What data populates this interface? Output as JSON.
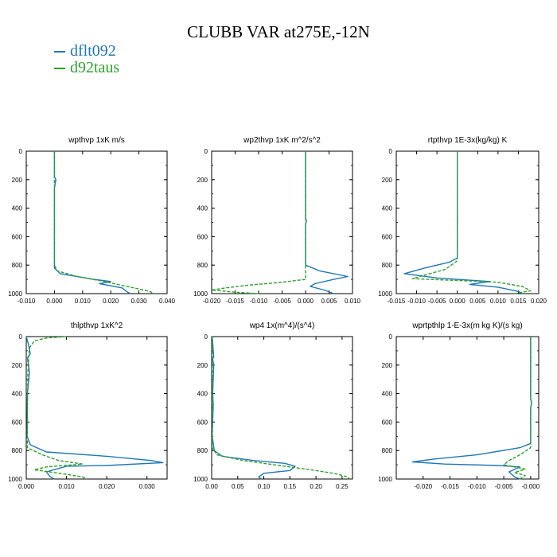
{
  "title": "CLUBB VAR at275E,-12N",
  "legend": [
    {
      "label": "dflt092",
      "color": "#1f77b4"
    },
    {
      "label": "d92taus",
      "color": "#2ca02c"
    }
  ],
  "chart_data": [
    {
      "type": "line",
      "title": "wpthvp  1xK m/s",
      "xlim": [
        -0.01,
        0.04
      ],
      "xticks": [
        "-0.010",
        "0.000",
        "0.010",
        "0.020",
        "0.030",
        "0.040"
      ],
      "ylim": [
        0,
        1000
      ],
      "yticks": [
        "0",
        "200",
        "400",
        "600",
        "800",
        "1000"
      ],
      "series": [
        {
          "name": "dflt092",
          "color": "#1f77b4",
          "points": [
            [
              0,
              0
            ],
            [
              0,
              180
            ],
            [
              0.0005,
              200
            ],
            [
              0,
              260
            ],
            [
              0,
              500
            ],
            [
              0,
              820
            ],
            [
              0.002,
              860
            ],
            [
              0.014,
              900
            ],
            [
              0.02,
              915
            ],
            [
              0.016,
              930
            ],
            [
              0.024,
              960
            ],
            [
              0.026,
              990
            ],
            [
              0.027,
              1000
            ]
          ]
        },
        {
          "name": "d92taus",
          "color": "#2ca02c",
          "points": [
            [
              0,
              0
            ],
            [
              0,
              500
            ],
            [
              0,
              800
            ],
            [
              0.001,
              840
            ],
            [
              0.008,
              880
            ],
            [
              0.018,
              915
            ],
            [
              0.02,
              925
            ],
            [
              0.027,
              955
            ],
            [
              0.034,
              985
            ],
            [
              0.035,
              1000
            ]
          ]
        }
      ]
    },
    {
      "type": "line",
      "title": "wp2thvp  1xK m^2/s^2",
      "xlim": [
        -0.02,
        0.01
      ],
      "xticks": [
        "-0.020",
        "-0.015",
        "-0.010",
        "-0.005",
        "0.000",
        "0.005",
        "0.010"
      ],
      "ylim": [
        0,
        1000
      ],
      "yticks": [
        "0",
        "200",
        "400",
        "600",
        "800",
        "1000"
      ],
      "series": [
        {
          "name": "dflt092",
          "color": "#1f77b4",
          "points": [
            [
              0,
              0
            ],
            [
              0,
              470
            ],
            [
              0.0002,
              490
            ],
            [
              0,
              510
            ],
            [
              0,
              800
            ],
            [
              0.003,
              840
            ],
            [
              0.009,
              880
            ],
            [
              0.006,
              900
            ],
            [
              0.002,
              930
            ],
            [
              0.001,
              950
            ],
            [
              0.004,
              975
            ],
            [
              0.006,
              1000
            ]
          ]
        },
        {
          "name": "d92taus",
          "color": "#2ca02c",
          "points": [
            [
              0,
              0
            ],
            [
              0,
              480
            ],
            [
              0.0002,
              490
            ],
            [
              0,
              510
            ],
            [
              0,
              900
            ],
            [
              -0.005,
              920
            ],
            [
              -0.012,
              940
            ],
            [
              -0.017,
              960
            ],
            [
              -0.02,
              975
            ],
            [
              -0.015,
              990
            ],
            [
              -0.01,
              1000
            ]
          ]
        }
      ]
    },
    {
      "type": "line",
      "title": "rtpthvp  1E-3x(kg/kg) K",
      "xlim": [
        -0.015,
        0.02
      ],
      "xticks": [
        "-0.015",
        "-0.010",
        "-0.005",
        "0.000",
        "0.005",
        "0.010",
        "0.015",
        "0.020"
      ],
      "ylim": [
        0,
        1000
      ],
      "yticks": [
        "0",
        "200",
        "400",
        "600",
        "800",
        "1000"
      ],
      "series": [
        {
          "name": "dflt092",
          "color": "#1f77b4",
          "points": [
            [
              0,
              0
            ],
            [
              0,
              750
            ],
            [
              -0.002,
              780
            ],
            [
              -0.008,
              820
            ],
            [
              -0.013,
              860
            ],
            [
              -0.005,
              890
            ],
            [
              0.008,
              915
            ],
            [
              0.003,
              935
            ],
            [
              0.01,
              955
            ],
            [
              0.015,
              985
            ],
            [
              0.016,
              1000
            ]
          ]
        },
        {
          "name": "d92taus",
          "color": "#2ca02c",
          "points": [
            [
              0,
              0
            ],
            [
              0,
              770
            ],
            [
              -0.003,
              830
            ],
            [
              -0.008,
              870
            ],
            [
              -0.011,
              895
            ],
            [
              0.002,
              910
            ],
            [
              0.01,
              920
            ],
            [
              0.016,
              950
            ],
            [
              0.018,
              980
            ],
            [
              0.014,
              1000
            ]
          ]
        }
      ]
    },
    {
      "type": "line",
      "title": "thlpthvp  1xK^2",
      "xlim": [
        0.0,
        0.035
      ],
      "xticks": [
        "0.000",
        "0.010",
        "0.020",
        "0.030"
      ],
      "ylim": [
        0,
        1000
      ],
      "yticks": [
        "0",
        "200",
        "400",
        "600",
        "800",
        "1000"
      ],
      "series": [
        {
          "name": "dflt092",
          "color": "#1f77b4",
          "points": [
            [
              0,
              0
            ],
            [
              0.0005,
              50
            ],
            [
              0.001,
              120
            ],
            [
              0.0003,
              150
            ],
            [
              0.0008,
              250
            ],
            [
              0.0003,
              400
            ],
            [
              0.0002,
              700
            ],
            [
              0.001,
              760
            ],
            [
              0.005,
              810
            ],
            [
              0.02,
              840
            ],
            [
              0.031,
              870
            ],
            [
              0.034,
              885
            ],
            [
              0.02,
              905
            ],
            [
              0.01,
              910
            ],
            [
              0.005,
              950
            ],
            [
              0.006,
              985
            ],
            [
              0.007,
              1000
            ]
          ]
        },
        {
          "name": "d92taus",
          "color": "#2ca02c",
          "points": [
            [
              0.01,
              0
            ],
            [
              0.005,
              10
            ],
            [
              0.002,
              30
            ],
            [
              0.0008,
              80
            ],
            [
              0.0004,
              250
            ],
            [
              0.0003,
              500
            ],
            [
              0.0003,
              780
            ],
            [
              0.004,
              830
            ],
            [
              0.008,
              870
            ],
            [
              0.014,
              895
            ],
            [
              0.005,
              915
            ],
            [
              0.002,
              935
            ],
            [
              0.007,
              955
            ],
            [
              0.014,
              985
            ],
            [
              0.015,
              1000
            ]
          ]
        }
      ]
    },
    {
      "type": "line",
      "title": "wp4  1x(m^4)/(s^4)",
      "xlim": [
        0.0,
        0.27
      ],
      "xticks": [
        "0.00",
        "0.05",
        "0.10",
        "0.15",
        "0.20",
        "0.25"
      ],
      "ylim": [
        0,
        1000
      ],
      "yticks": [
        "0",
        "200",
        "400",
        "600",
        "800",
        "1000"
      ],
      "series": [
        {
          "name": "dflt092",
          "color": "#1f77b4",
          "points": [
            [
              0.001,
              0
            ],
            [
              0.004,
              140
            ],
            [
              0.002,
              160
            ],
            [
              0.004,
              200
            ],
            [
              0.002,
              400
            ],
            [
              0.003,
              480
            ],
            [
              0.001,
              700
            ],
            [
              0.005,
              800
            ],
            [
              0.02,
              840
            ],
            [
              0.08,
              870
            ],
            [
              0.14,
              890
            ],
            [
              0.16,
              910
            ],
            [
              0.15,
              940
            ],
            [
              0.1,
              960
            ],
            [
              0.09,
              985
            ],
            [
              0.095,
              1000
            ]
          ]
        },
        {
          "name": "d92taus",
          "color": "#2ca02c",
          "points": [
            [
              0.001,
              0
            ],
            [
              0.001,
              400
            ],
            [
              0.001,
              780
            ],
            [
              0.01,
              830
            ],
            [
              0.06,
              870
            ],
            [
              0.14,
              910
            ],
            [
              0.2,
              940
            ],
            [
              0.24,
              965
            ],
            [
              0.26,
              985
            ],
            [
              0.265,
              1000
            ]
          ]
        }
      ]
    },
    {
      "type": "line",
      "title": "wprtpthlp  1-E-3x(m kg K)/(s kg)",
      "xlim": [
        -0.025,
        0.0015
      ],
      "xticks": [
        "-0.020",
        "-0.015",
        "-0.010",
        "-0.005",
        "-0.000"
      ],
      "ylim": [
        0,
        1000
      ],
      "yticks": [
        "0",
        "200",
        "400",
        "600",
        "800",
        "1000"
      ],
      "series": [
        {
          "name": "dflt092",
          "color": "#1f77b4",
          "points": [
            [
              0,
              0
            ],
            [
              0,
              440
            ],
            [
              0.0002,
              470
            ],
            [
              0,
              500
            ],
            [
              0,
              750
            ],
            [
              -0.002,
              780
            ],
            [
              -0.01,
              830
            ],
            [
              -0.018,
              860
            ],
            [
              -0.022,
              880
            ],
            [
              -0.016,
              895
            ],
            [
              -0.006,
              905
            ],
            [
              -0.002,
              915
            ],
            [
              -0.004,
              950
            ],
            [
              -0.003,
              985
            ],
            [
              -0.002,
              1000
            ]
          ]
        },
        {
          "name": "d92taus",
          "color": "#2ca02c",
          "points": [
            [
              0,
              0
            ],
            [
              0,
              440
            ],
            [
              0.0002,
              460
            ],
            [
              0,
              500
            ],
            [
              0,
              780
            ],
            [
              -0.002,
              830
            ],
            [
              -0.004,
              870
            ],
            [
              -0.005,
              900
            ],
            [
              -0.001,
              930
            ],
            [
              -0.003,
              955
            ],
            [
              -0.001,
              975
            ],
            [
              -0.002,
              1000
            ]
          ]
        }
      ]
    }
  ]
}
